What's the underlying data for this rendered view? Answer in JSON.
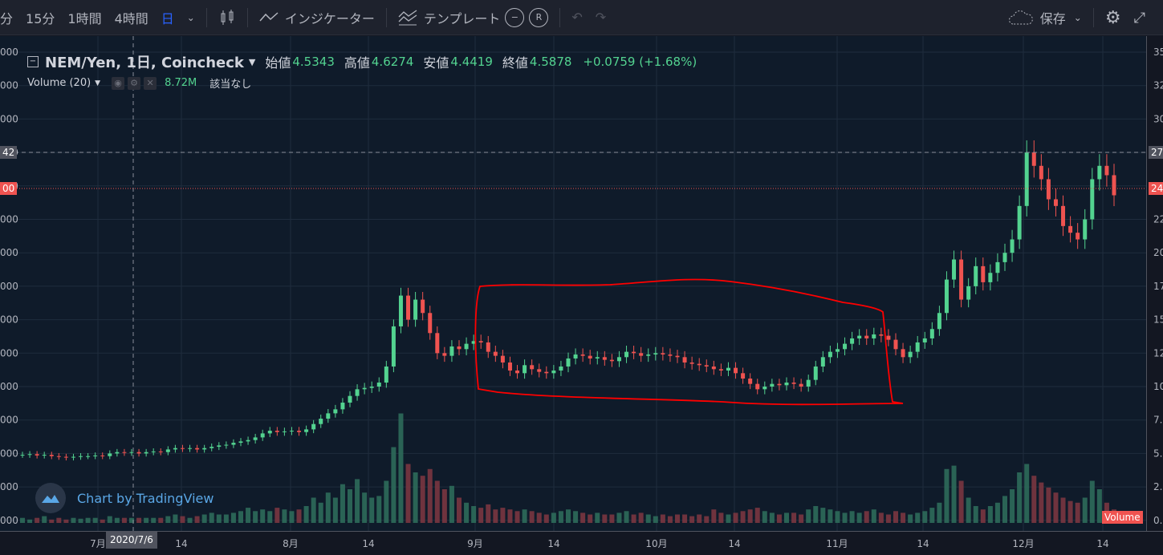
{
  "toolbar": {
    "intervals": [
      "分",
      "15分",
      "1時間",
      "4時間",
      "日"
    ],
    "active_interval": "日",
    "indicators_label": "インジケーター",
    "templates_label": "テンプレート",
    "circle_a": "−",
    "circle_b": "R",
    "save_label": "保存"
  },
  "legend": {
    "symbol": "NEM/Yen, 1日, Coincheck",
    "open_label": "始値",
    "open": "4.5343",
    "high_label": "高値",
    "high": "4.6274",
    "low_label": "安値",
    "low": "4.4419",
    "close_label": "終値",
    "close": "4.5878",
    "change": "+0.0759 (+1.68%)"
  },
  "volume_legend": {
    "label": "Volume (20)",
    "value": "8.72M",
    "na": "該当なし"
  },
  "watermark": "Chart by TradingView",
  "crosshair_date": "2020/7/6",
  "left_axis_tags": {
    "crosshair": "42",
    "last": "00"
  },
  "right_axis_tags": {
    "crosshair": "27",
    "last": "24",
    "volume": "Volume"
  },
  "colors": {
    "up": "#53d390",
    "down": "#ef5350",
    "annotation": "#ff0000",
    "background": "#0f1b2a"
  },
  "chart_data": {
    "type": "candlestick",
    "xlabels": [
      "7月",
      "14",
      "8月",
      "14",
      "9月",
      "14",
      "10月",
      "14",
      "11月",
      "14",
      "12月",
      "14"
    ],
    "left_ticks": [
      "000",
      "000",
      "000",
      "000",
      "000",
      "000",
      "000",
      "000",
      "000",
      "000",
      "000",
      "000",
      "000",
      "000",
      "000"
    ],
    "right_ticks": [
      "35",
      "32",
      "30",
      "27",
      "25",
      "22",
      "20",
      "17",
      "15",
      "12",
      "10",
      "7.",
      "5.",
      "2.",
      "0."
    ],
    "series": [
      {
        "close": 4.9,
        "vol": 0.3
      },
      {
        "close": 4.95,
        "vol": 0.2
      },
      {
        "close": 4.85,
        "vol": 0.3
      },
      {
        "close": 4.9,
        "vol": 0.4
      },
      {
        "close": 4.8,
        "vol": 0.2
      },
      {
        "close": 4.75,
        "vol": 0.3
      },
      {
        "close": 4.7,
        "vol": 0.2
      },
      {
        "close": 4.75,
        "vol": 0.3
      },
      {
        "close": 4.8,
        "vol": 0.25
      },
      {
        "close": 4.8,
        "vol": 0.3
      },
      {
        "close": 4.85,
        "vol": 0.3
      },
      {
        "close": 4.8,
        "vol": 0.2
      },
      {
        "close": 5.0,
        "vol": 0.4
      },
      {
        "close": 5.1,
        "vol": 0.3
      },
      {
        "close": 5.05,
        "vol": 0.3
      },
      {
        "close": 5.1,
        "vol": 0.3
      },
      {
        "close": 5.0,
        "vol": 0.3
      },
      {
        "close": 5.1,
        "vol": 0.3
      },
      {
        "close": 5.15,
        "vol": 0.3
      },
      {
        "close": 5.1,
        "vol": 0.3
      },
      {
        "close": 5.3,
        "vol": 0.4
      },
      {
        "close": 5.4,
        "vol": 0.5
      },
      {
        "close": 5.35,
        "vol": 0.4
      },
      {
        "close": 5.4,
        "vol": 0.3
      },
      {
        "close": 5.3,
        "vol": 0.4
      },
      {
        "close": 5.4,
        "vol": 0.5
      },
      {
        "close": 5.5,
        "vol": 0.6
      },
      {
        "close": 5.6,
        "vol": 0.5
      },
      {
        "close": 5.65,
        "vol": 0.5
      },
      {
        "close": 5.8,
        "vol": 0.6
      },
      {
        "close": 5.9,
        "vol": 0.7
      },
      {
        "close": 6.0,
        "vol": 0.9
      },
      {
        "close": 6.2,
        "vol": 0.7
      },
      {
        "close": 6.5,
        "vol": 0.8
      },
      {
        "close": 6.7,
        "vol": 0.7
      },
      {
        "close": 6.6,
        "vol": 0.9
      },
      {
        "close": 6.65,
        "vol": 0.8
      },
      {
        "close": 6.7,
        "vol": 0.7
      },
      {
        "close": 6.6,
        "vol": 0.8
      },
      {
        "close": 6.8,
        "vol": 1.0
      },
      {
        "close": 7.2,
        "vol": 1.5
      },
      {
        "close": 7.6,
        "vol": 1.2
      },
      {
        "close": 8.0,
        "vol": 1.8
      },
      {
        "close": 8.3,
        "vol": 1.5
      },
      {
        "close": 8.8,
        "vol": 2.3
      },
      {
        "close": 9.3,
        "vol": 2.0
      },
      {
        "close": 9.8,
        "vol": 2.6
      },
      {
        "close": 9.9,
        "vol": 1.8
      },
      {
        "close": 10.0,
        "vol": 1.5
      },
      {
        "close": 10.3,
        "vol": 1.6
      },
      {
        "close": 11.5,
        "vol": 2.5
      },
      {
        "close": 14.5,
        "vol": 4.5
      },
      {
        "close": 16.8,
        "vol": 6.5
      },
      {
        "close": 15.0,
        "vol": 3.5
      },
      {
        "close": 16.5,
        "vol": 3.0
      },
      {
        "close": 15.5,
        "vol": 2.8
      },
      {
        "close": 14.0,
        "vol": 3.2
      },
      {
        "close": 12.5,
        "vol": 2.5
      },
      {
        "close": 12.3,
        "vol": 2.0
      },
      {
        "close": 13.0,
        "vol": 2.2
      },
      {
        "close": 12.8,
        "vol": 1.5
      },
      {
        "close": 13.2,
        "vol": 1.2
      },
      {
        "close": 13.4,
        "vol": 1.0
      },
      {
        "close": 13.3,
        "vol": 0.9
      },
      {
        "close": 12.6,
        "vol": 1.1
      },
      {
        "close": 12.3,
        "vol": 0.8
      },
      {
        "close": 11.8,
        "vol": 0.9
      },
      {
        "close": 11.2,
        "vol": 0.8
      },
      {
        "close": 11.0,
        "vol": 0.7
      },
      {
        "close": 11.6,
        "vol": 0.8
      },
      {
        "close": 11.3,
        "vol": 0.7
      },
      {
        "close": 11.1,
        "vol": 0.6
      },
      {
        "close": 11.0,
        "vol": 0.5
      },
      {
        "close": 11.2,
        "vol": 0.6
      },
      {
        "close": 11.5,
        "vol": 0.7
      },
      {
        "close": 12.1,
        "vol": 0.8
      },
      {
        "close": 12.4,
        "vol": 0.7
      },
      {
        "close": 12.3,
        "vol": 0.6
      },
      {
        "close": 12.1,
        "vol": 0.5
      },
      {
        "close": 12.2,
        "vol": 0.6
      },
      {
        "close": 12.0,
        "vol": 0.5
      },
      {
        "close": 11.9,
        "vol": 0.5
      },
      {
        "close": 12.2,
        "vol": 0.6
      },
      {
        "close": 12.6,
        "vol": 0.7
      },
      {
        "close": 12.5,
        "vol": 0.5
      },
      {
        "close": 12.3,
        "vol": 0.6
      },
      {
        "close": 12.4,
        "vol": 0.5
      },
      {
        "close": 12.5,
        "vol": 0.4
      },
      {
        "close": 12.4,
        "vol": 0.5
      },
      {
        "close": 12.3,
        "vol": 0.4
      },
      {
        "close": 12.2,
        "vol": 0.5
      },
      {
        "close": 11.8,
        "vol": 0.5
      },
      {
        "close": 11.7,
        "vol": 0.4
      },
      {
        "close": 11.6,
        "vol": 0.5
      },
      {
        "close": 11.5,
        "vol": 0.4
      },
      {
        "close": 11.3,
        "vol": 0.8
      },
      {
        "close": 11.2,
        "vol": 0.6
      },
      {
        "close": 11.4,
        "vol": 0.5
      },
      {
        "close": 11.0,
        "vol": 0.6
      },
      {
        "close": 10.6,
        "vol": 0.7
      },
      {
        "close": 10.2,
        "vol": 0.8
      },
      {
        "close": 9.8,
        "vol": 0.9
      },
      {
        "close": 10.0,
        "vol": 0.7
      },
      {
        "close": 10.2,
        "vol": 0.6
      },
      {
        "close": 10.1,
        "vol": 0.5
      },
      {
        "close": 10.3,
        "vol": 0.6
      },
      {
        "close": 10.2,
        "vol": 0.6
      },
      {
        "close": 10.0,
        "vol": 0.5
      },
      {
        "close": 10.5,
        "vol": 0.8
      },
      {
        "close": 11.5,
        "vol": 1.0
      },
      {
        "close": 12.2,
        "vol": 0.9
      },
      {
        "close": 12.6,
        "vol": 0.8
      },
      {
        "close": 12.8,
        "vol": 0.7
      },
      {
        "close": 13.2,
        "vol": 0.6
      },
      {
        "close": 13.6,
        "vol": 0.7
      },
      {
        "close": 13.8,
        "vol": 0.6
      },
      {
        "close": 13.6,
        "vol": 0.7
      },
      {
        "close": 13.9,
        "vol": 0.8
      },
      {
        "close": 13.8,
        "vol": 0.6
      },
      {
        "close": 13.5,
        "vol": 0.5
      },
      {
        "close": 12.8,
        "vol": 0.7
      },
      {
        "close": 12.2,
        "vol": 0.6
      },
      {
        "close": 12.6,
        "vol": 0.5
      },
      {
        "close": 13.3,
        "vol": 0.6
      },
      {
        "close": 13.6,
        "vol": 0.7
      },
      {
        "close": 14.3,
        "vol": 0.9
      },
      {
        "close": 15.5,
        "vol": 1.2
      },
      {
        "close": 18.0,
        "vol": 3.2
      },
      {
        "close": 19.5,
        "vol": 3.4
      },
      {
        "close": 16.5,
        "vol": 2.5
      },
      {
        "close": 17.5,
        "vol": 1.5
      },
      {
        "close": 19.0,
        "vol": 1.0
      },
      {
        "close": 17.8,
        "vol": 0.8
      },
      {
        "close": 18.5,
        "vol": 1.0
      },
      {
        "close": 19.3,
        "vol": 1.2
      },
      {
        "close": 20.0,
        "vol": 1.6
      },
      {
        "close": 21.0,
        "vol": 2.0
      },
      {
        "close": 23.5,
        "vol": 3.0
      },
      {
        "close": 27.5,
        "vol": 3.5
      },
      {
        "close": 26.5,
        "vol": 2.8
      },
      {
        "close": 25.5,
        "vol": 2.4
      },
      {
        "close": 24.0,
        "vol": 2.1
      },
      {
        "close": 23.5,
        "vol": 1.8
      },
      {
        "close": 22.0,
        "vol": 1.5
      },
      {
        "close": 21.5,
        "vol": 1.3
      },
      {
        "close": 21.0,
        "vol": 1.2
      },
      {
        "close": 22.5,
        "vol": 1.5
      },
      {
        "close": 25.5,
        "vol": 2.5
      },
      {
        "close": 26.5,
        "vol": 2.0
      },
      {
        "close": 25.8,
        "vol": 1.2
      },
      {
        "close": 24.3,
        "vol": 0.8
      }
    ]
  }
}
